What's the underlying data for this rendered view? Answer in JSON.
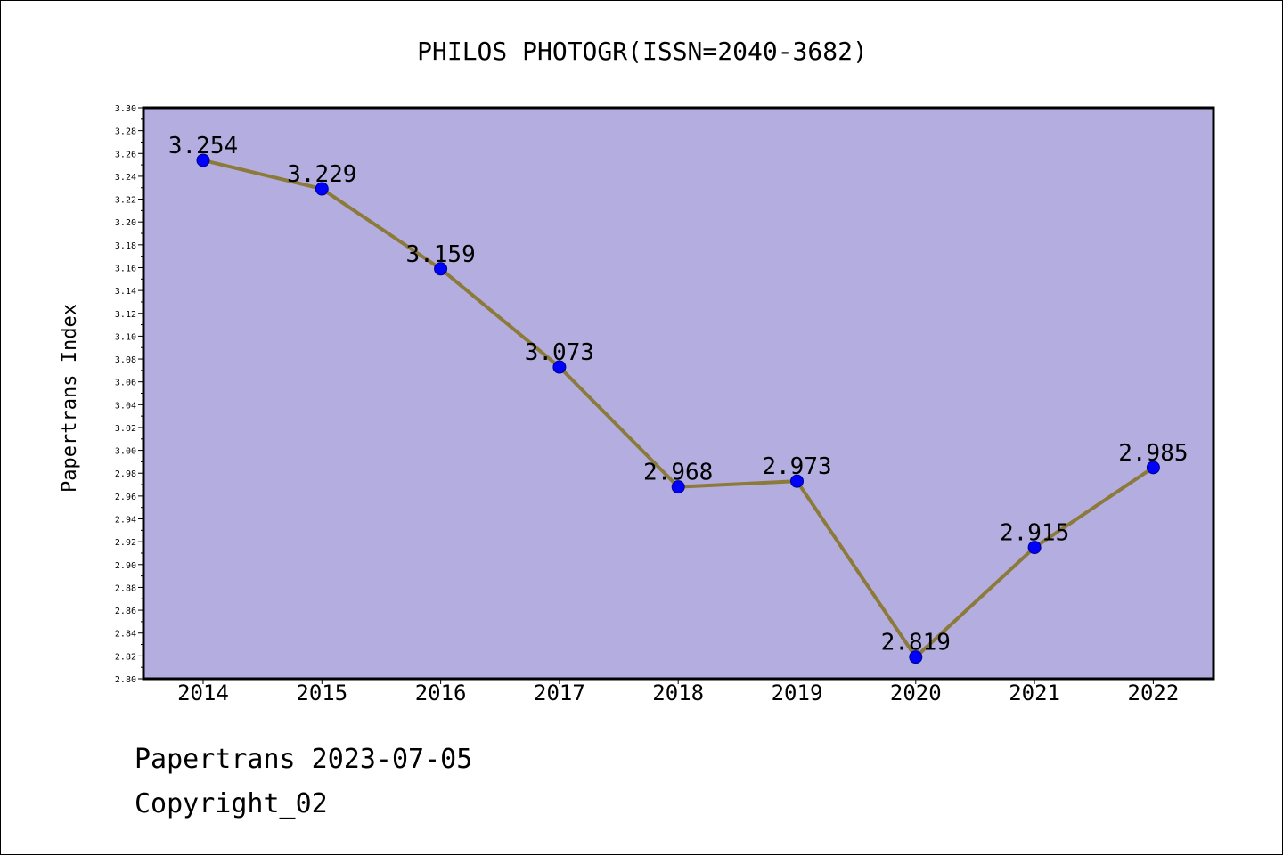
{
  "chart_data": {
    "type": "line",
    "title": "PHILOS PHOTOGR(ISSN=2040-3682)",
    "xlabel": "",
    "ylabel": "Papertrans Index",
    "categories": [
      "2014",
      "2015",
      "2016",
      "2017",
      "2018",
      "2019",
      "2020",
      "2021",
      "2022"
    ],
    "series": [
      {
        "values": [
          3.254,
          3.229,
          3.159,
          3.073,
          2.968,
          2.973,
          2.819,
          2.915,
          2.985
        ],
        "labels": [
          "3.254",
          "3.229",
          "3.159",
          "3.073",
          "2.968",
          "2.973",
          "2.819",
          "2.915",
          "2.985"
        ]
      }
    ],
    "ylim": [
      2.8,
      3.3
    ],
    "yticks": [
      "2.80",
      "2.82",
      "2.84",
      "2.86",
      "2.88",
      "2.90",
      "2.92",
      "2.94",
      "2.96",
      "2.98",
      "3.00",
      "3.02",
      "3.04",
      "3.06",
      "3.08",
      "3.10",
      "3.12",
      "3.14",
      "3.16",
      "3.18",
      "3.20",
      "3.22",
      "3.24",
      "3.26",
      "3.28",
      "3.30"
    ],
    "grid": false,
    "colors": {
      "plot_background": "#b4aee0",
      "line": "#8b7a3a",
      "marker": "#0000ff"
    }
  },
  "footer": {
    "date_line": "Papertrans 2023-07-05",
    "copyright": "Copyright_02"
  }
}
